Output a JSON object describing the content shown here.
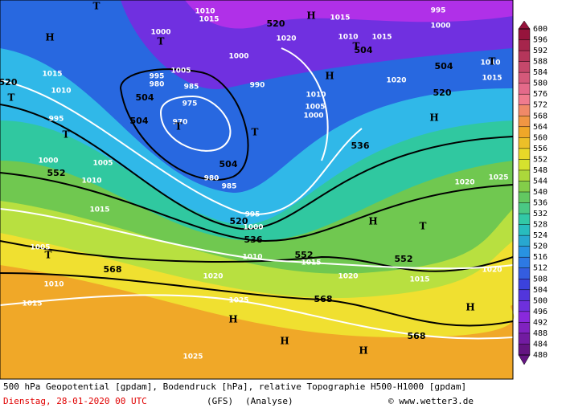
{
  "map": {
    "labels": [
      "520",
      "504",
      "504",
      "520",
      "504",
      "504",
      "536",
      "552",
      "504",
      "520",
      "536",
      "552",
      "552",
      "568",
      "568",
      "568",
      "520",
      "1010",
      "1015",
      "1000",
      "995",
      "1000",
      "1015",
      "1010",
      "1015",
      "1010",
      "1015",
      "1020",
      "1000",
      "995",
      "980",
      "1005",
      "985",
      "975",
      "990",
      "1010",
      "1005",
      "1000",
      "970",
      "980",
      "985",
      "995",
      "1000",
      "1010",
      "1015",
      "1020",
      "1015",
      "1020",
      "1025",
      "1020",
      "1015",
      "1010",
      "1005",
      "1000",
      "995",
      "1015",
      "1010",
      "1005",
      "1010",
      "1015",
      "1020",
      "1025",
      "1025",
      "1020",
      "H",
      "T",
      "T",
      "H",
      "T",
      "T",
      "H",
      "T",
      "H",
      "T",
      "T",
      "T",
      "H",
      "T",
      "T",
      "H",
      "H",
      "H",
      "H"
    ]
  },
  "colorbar": {
    "ticks": [
      600,
      596,
      592,
      588,
      584,
      580,
      576,
      572,
      568,
      564,
      560,
      556,
      552,
      548,
      544,
      540,
      536,
      532,
      528,
      524,
      520,
      516,
      512,
      508,
      504,
      500,
      496,
      492,
      488,
      484,
      480
    ]
  },
  "footer": {
    "description": "500 hPa Geopotential [gpdam], Bodendruck [hPa], relative Topographie H500-H1000 [gpdam]",
    "date": "Dienstag, 28-01-2020  00 UTC",
    "model": "(GFS)",
    "run": "(Analyse)",
    "credit": "© www.wetter3.de"
  }
}
